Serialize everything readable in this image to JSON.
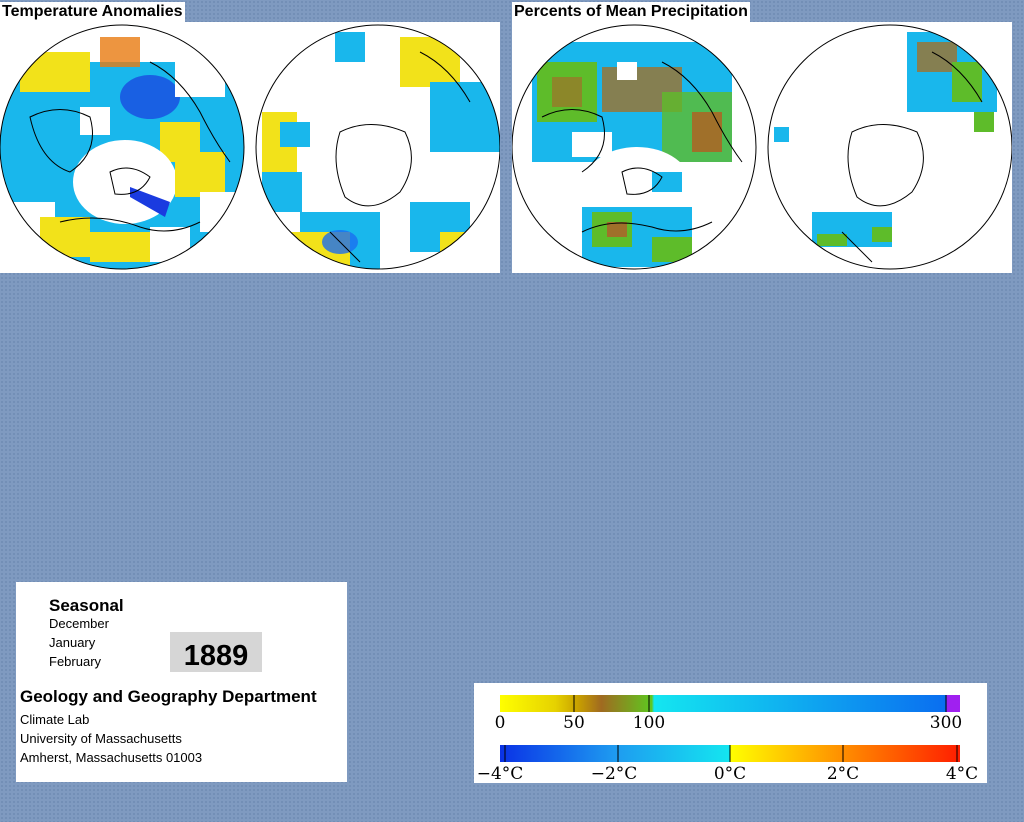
{
  "titles": {
    "temperature": "Temperature Anomalies",
    "precipitation": "Percents of Mean Precipitation"
  },
  "info": {
    "season": "Seasonal",
    "months": [
      "December",
      "January",
      "February"
    ],
    "year": "1889",
    "department": "Geology and Geography Department",
    "address": [
      "Climate Lab",
      "University of Massachusetts",
      "Amherst, Massachusetts 01003"
    ]
  },
  "legend": {
    "precipitation": {
      "ticks": [
        "0",
        "50",
        "100",
        "300"
      ],
      "colors": [
        "#ffff00",
        "#c8a000",
        "#a06a20",
        "#5ec820",
        "#14e6f0",
        "#0a6ef0",
        "#a020f0"
      ]
    },
    "temperature": {
      "ticks": [
        "−4°C",
        "−2°C",
        "0°C",
        "2°C",
        "4°C"
      ],
      "colors": [
        "#0a32e6",
        "#1e9bf0",
        "#14e6f0",
        "#ffff00",
        "#ff8c00",
        "#ff1e00"
      ]
    }
  },
  "colors": {
    "background": "#7f9ac0",
    "cold": "#19b7ec",
    "cold_strong": "#1a3be0",
    "warm": "#f2e21a",
    "warm_strong": "#e87a10",
    "dry": "#a0702a",
    "wet": "#5ebc2a"
  }
}
